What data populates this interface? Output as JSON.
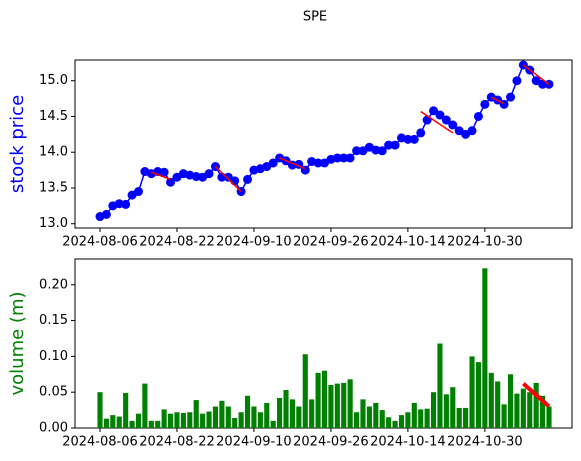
{
  "chart_data": [
    {
      "type": "line",
      "title": "SPE",
      "ylabel": "stock price",
      "ylabel_color": "#0000ff",
      "color": "#0000ff",
      "marker": true,
      "x": [
        "2024-08-06",
        "2024-08-07",
        "2024-08-08",
        "2024-08-09",
        "2024-08-12",
        "2024-08-13",
        "2024-08-14",
        "2024-08-15",
        "2024-08-16",
        "2024-08-19",
        "2024-08-20",
        "2024-08-21",
        "2024-08-22",
        "2024-08-23",
        "2024-08-26",
        "2024-08-27",
        "2024-08-28",
        "2024-08-29",
        "2024-08-30",
        "2024-09-03",
        "2024-09-04",
        "2024-09-05",
        "2024-09-06",
        "2024-09-09",
        "2024-09-10",
        "2024-09-11",
        "2024-09-12",
        "2024-09-13",
        "2024-09-16",
        "2024-09-17",
        "2024-09-18",
        "2024-09-19",
        "2024-09-20",
        "2024-09-23",
        "2024-09-24",
        "2024-09-25",
        "2024-09-26",
        "2024-09-27",
        "2024-09-30",
        "2024-10-01",
        "2024-10-02",
        "2024-10-03",
        "2024-10-04",
        "2024-10-07",
        "2024-10-08",
        "2024-10-09",
        "2024-10-10",
        "2024-10-11",
        "2024-10-14",
        "2024-10-15",
        "2024-10-16",
        "2024-10-17",
        "2024-10-18",
        "2024-10-21",
        "2024-10-22",
        "2024-10-23",
        "2024-10-24",
        "2024-10-25",
        "2024-10-28",
        "2024-10-29",
        "2024-10-30",
        "2024-10-31",
        "2024-11-01",
        "2024-11-04",
        "2024-11-05",
        "2024-11-06",
        "2024-11-07",
        "2024-11-08",
        "2024-11-11",
        "2024-11-12",
        "2024-11-13"
      ],
      "values": [
        13.1,
        13.13,
        13.25,
        13.28,
        13.27,
        13.4,
        13.45,
        13.73,
        13.7,
        13.73,
        13.72,
        13.58,
        13.65,
        13.7,
        13.68,
        13.66,
        13.65,
        13.7,
        13.8,
        13.65,
        13.65,
        13.6,
        13.45,
        13.62,
        13.75,
        13.77,
        13.8,
        13.85,
        13.92,
        13.88,
        13.82,
        13.83,
        13.75,
        13.87,
        13.85,
        13.85,
        13.9,
        13.92,
        13.92,
        13.92,
        14.02,
        14.02,
        14.07,
        14.03,
        14.02,
        14.1,
        14.1,
        14.2,
        14.18,
        14.18,
        14.27,
        14.45,
        14.58,
        14.52,
        14.45,
        14.38,
        14.3,
        14.25,
        14.3,
        14.5,
        14.67,
        14.77,
        14.73,
        14.67,
        14.77,
        15.0,
        15.22,
        15.15,
        15.0,
        14.95,
        14.95
      ],
      "xticks": [
        "2024-08-06",
        "2024-08-22",
        "2024-09-10",
        "2024-09-26",
        "2024-10-14",
        "2024-10-30"
      ],
      "ylim": [
        12.94,
        15.29
      ],
      "yticks": [
        {
          "value": 13,
          "label": "13.0"
        },
        13.5,
        {
          "value": 14,
          "label": "14.0"
        },
        14.5,
        {
          "value": 15,
          "label": "15.0"
        }
      ],
      "trend_color": "#ff0000",
      "trend_lines": [
        {
          "x": [
            "2024-08-16",
            "2024-08-21"
          ],
          "values": [
            13.72,
            13.62
          ]
        },
        {
          "x": [
            "2024-08-30",
            "2024-09-06"
          ],
          "values": [
            13.8,
            13.45
          ]
        },
        {
          "x": [
            "2024-09-16",
            "2024-09-20"
          ],
          "values": [
            13.92,
            13.77
          ]
        },
        {
          "x": [
            "2024-10-16",
            "2024-10-23"
          ],
          "values": [
            14.57,
            14.27
          ]
        },
        {
          "x": [
            "2024-10-31",
            "2024-11-04"
          ],
          "values": [
            14.77,
            14.68
          ]
        },
        {
          "x": [
            "2024-11-07",
            "2024-11-13"
          ],
          "values": [
            15.22,
            14.95
          ]
        }
      ]
    },
    {
      "type": "bar",
      "ylabel": "volume (m)",
      "ylabel_color": "#008000",
      "color": "#008000",
      "values": [
        0.05,
        0.013,
        0.018,
        0.016,
        0.049,
        0.01,
        0.02,
        0.062,
        0.01,
        0.01,
        0.026,
        0.02,
        0.022,
        0.021,
        0.022,
        0.039,
        0.02,
        0.023,
        0.03,
        0.038,
        0.03,
        0.014,
        0.022,
        0.045,
        0.03,
        0.022,
        0.035,
        0.01,
        0.042,
        0.053,
        0.04,
        0.03,
        0.103,
        0.04,
        0.077,
        0.08,
        0.06,
        0.062,
        0.063,
        0.068,
        0.022,
        0.04,
        0.03,
        0.035,
        0.025,
        0.015,
        0.01,
        0.018,
        0.022,
        0.035,
        0.026,
        0.027,
        0.05,
        0.118,
        0.047,
        0.057,
        0.028,
        0.028,
        0.1,
        0.092,
        0.223,
        0.077,
        0.065,
        0.033,
        0.075,
        0.048,
        0.055,
        0.05,
        0.063,
        0.045,
        0.03
      ],
      "ylim": [
        0,
        0.236
      ],
      "yticks": [
        {
          "value": 0,
          "label": "0.00"
        },
        {
          "value": 0.05,
          "label": "0.05"
        },
        {
          "value": 0.1,
          "label": "0.10"
        },
        {
          "value": 0.15,
          "label": "0.15"
        },
        {
          "value": 0.2,
          "label": "0.20"
        }
      ],
      "trend_color": "#ff0000",
      "trend_lines": [
        {
          "x": [
            "2024-11-07",
            "2024-11-13"
          ],
          "values": [
            0.062,
            0.03
          ]
        }
      ]
    }
  ]
}
